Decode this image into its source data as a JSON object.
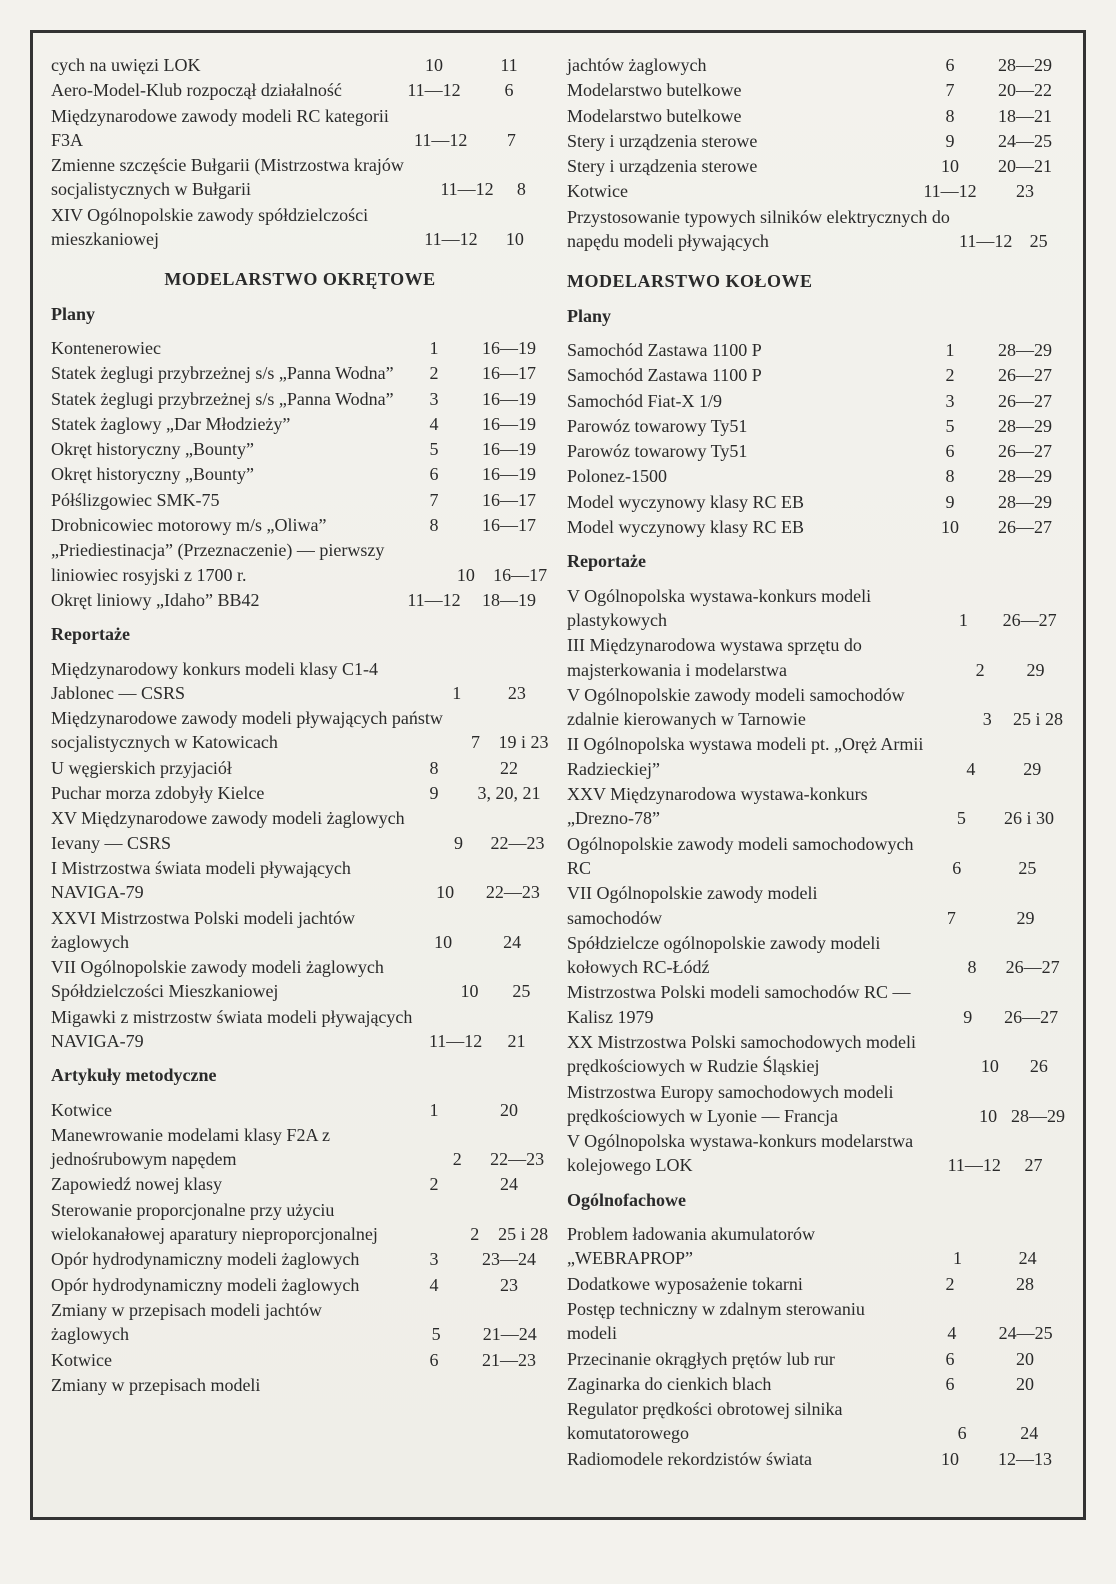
{
  "left": {
    "top_rows": [
      {
        "label": "cych na uwięzi LOK",
        "c1": "10",
        "c2": "11"
      },
      {
        "label": "Aero-Model-Klub rozpoczął działalność",
        "c1": "11—12",
        "c2": "6"
      },
      {
        "label": "Międzynarodowe zawody modeli RC kategorii F3A",
        "c1": "11—12",
        "c2": "7"
      },
      {
        "label": "Zmienne szczęście Bułgarii (Mistrzostwa krajów socjalistycznych w Bułgarii",
        "c1": "11—12",
        "c2": "8"
      },
      {
        "label": "XIV Ogólnopolskie zawody spółdzielczości mieszkaniowej",
        "c1": "11—12",
        "c2": "10"
      }
    ],
    "section1_title": "MODELARSTWO OKRĘTOWE",
    "plany_head": "Plany",
    "plany_rows": [
      {
        "label": "Kontenerowiec",
        "c1": "1",
        "c2": "16—19"
      },
      {
        "label": "Statek żeglugi przybrzeżnej s/s „Panna Wodna”",
        "c1": "2",
        "c2": "16—17"
      },
      {
        "label": "Statek żeglugi przybrzeżnej s/s „Panna Wodna”",
        "c1": "3",
        "c2": "16—19"
      },
      {
        "label": "Statek żaglowy „Dar Młodzieży”",
        "c1": "4",
        "c2": "16—19"
      },
      {
        "label": "Okręt historyczny „Bounty”",
        "c1": "5",
        "c2": "16—19"
      },
      {
        "label": "Okręt historyczny „Bounty”",
        "c1": "6",
        "c2": "16—19"
      },
      {
        "label": "Półślizgowiec SMK-75",
        "c1": "7",
        "c2": "16—17"
      },
      {
        "label": "Drobnicowiec motorowy m/s „Oliwa”",
        "c1": "8",
        "c2": "16—17"
      },
      {
        "label": "„Priediestinacja” (Przeznaczenie) — pierwszy liniowiec rosyjski z 1700 r.",
        "c1": "10",
        "c2": "16—17"
      },
      {
        "label": "Okręt liniowy „Idaho” BB42",
        "c1": "11—12",
        "c2": "18—19"
      }
    ],
    "reportaze_head": "Reportaże",
    "reportaze_rows": [
      {
        "label": "Międzynarodowy konkurs modeli klasy C1-4 Jablonec — CSRS",
        "c1": "1",
        "c2": "23"
      },
      {
        "label": "Międzynarodowe zawody modeli pływających państw socjalistycznych w Katowicach",
        "c1": "7",
        "c2": "19 i 23"
      },
      {
        "label": "U węgierskich przyjaciół",
        "c1": "8",
        "c2": "22"
      },
      {
        "label": "Puchar morza zdobyły Kielce",
        "c1": "9",
        "c2": "3, 20, 21"
      },
      {
        "label": "XV Międzynarodowe zawody modeli żaglowych Ievany — CSRS",
        "c1": "9",
        "c2": "22—23"
      },
      {
        "label": "I Mistrzostwa świata modeli pływających NAVIGA-79",
        "c1": "10",
        "c2": "22—23"
      },
      {
        "label": "XXVI Mistrzostwa Polski modeli jachtów żaglowych",
        "c1": "10",
        "c2": "24"
      },
      {
        "label": "VII Ogólnopolskie zawody modeli żaglowych Spółdzielczości Mieszkaniowej",
        "c1": "10",
        "c2": "25"
      },
      {
        "label": "Migawki z mistrzostw świata modeli pływających NAVIGA-79",
        "c1": "11—12",
        "c2": "21"
      }
    ],
    "artykuly_head": "Artykuły metodyczne",
    "artykuly_rows": [
      {
        "label": "Kotwice",
        "c1": "1",
        "c2": "20"
      },
      {
        "label": "Manewrowanie modelami klasy F2A z jednośrubowym napędem",
        "c1": "2",
        "c2": "22—23"
      },
      {
        "label": "Zapowiedź nowej klasy",
        "c1": "2",
        "c2": "24"
      },
      {
        "label": "Sterowanie proporcjonalne przy użyciu wielokanałowej aparatury nieproporcjonalnej",
        "c1": "2",
        "c2": "25 i 28"
      },
      {
        "label": "Opór hydrodynamiczny modeli żaglowych",
        "c1": "3",
        "c2": "23—24"
      },
      {
        "label": "Opór hydrodynamiczny modeli żaglowych",
        "c1": "4",
        "c2": "23"
      },
      {
        "label": "Zmiany w przepisach modeli jachtów żaglowych",
        "c1": "5",
        "c2": "21—24"
      },
      {
        "label": "Kotwice",
        "c1": "6",
        "c2": "21—23"
      },
      {
        "label": "Zmiany w przepisach modeli",
        "c1": "",
        "c2": ""
      }
    ]
  },
  "right": {
    "top_rows": [
      {
        "label": "jachtów żaglowych",
        "c1": "6",
        "c2": "28—29"
      },
      {
        "label": "Modelarstwo butelkowe",
        "c1": "7",
        "c2": "20—22"
      },
      {
        "label": "Modelarstwo butelkowe",
        "c1": "8",
        "c2": "18—21"
      },
      {
        "label": "Stery i urządzenia sterowe",
        "c1": "9",
        "c2": "24—25"
      },
      {
        "label": "Stery i urządzenia sterowe",
        "c1": "10",
        "c2": "20—21"
      },
      {
        "label": "Kotwice",
        "c1": "11—12",
        "c2": "23"
      },
      {
        "label": "Przystosowanie typowych silników elektrycznych do napędu modeli pływających",
        "c1": "11—12",
        "c2": "25"
      }
    ],
    "section_title": "MODELARSTWO KOŁOWE",
    "plany_head": "Plany",
    "plany_rows": [
      {
        "label": "Samochód Zastawa 1100 P",
        "c1": "1",
        "c2": "28—29"
      },
      {
        "label": "Samochód Zastawa 1100 P",
        "c1": "2",
        "c2": "26—27"
      },
      {
        "label": "Samochód Fiat-X 1/9",
        "c1": "3",
        "c2": "26—27"
      },
      {
        "label": "Parowóz towarowy Ty51",
        "c1": "5",
        "c2": "28—29"
      },
      {
        "label": "Parowóz towarowy Ty51",
        "c1": "6",
        "c2": "26—27"
      },
      {
        "label": "Polonez-1500",
        "c1": "8",
        "c2": "28—29"
      },
      {
        "label": "Model wyczynowy klasy RC EB",
        "c1": "9",
        "c2": "28—29"
      },
      {
        "label": "Model wyczynowy klasy RC EB",
        "c1": "10",
        "c2": "26—27"
      }
    ],
    "reportaze_head": "Reportaże",
    "reportaze_rows": [
      {
        "label": "V Ogólnopolska wystawa-konkurs modeli plastykowych",
        "c1": "1",
        "c2": "26—27"
      },
      {
        "label": "III Międzynarodowa wystawa sprzętu do majsterkowania i modelarstwa",
        "c1": "2",
        "c2": "29"
      },
      {
        "label": "V Ogólnopolskie zawody modeli samochodów zdalnie kierowanych w Tarnowie",
        "c1": "3",
        "c2": "25 i 28"
      },
      {
        "label": "II Ogólnopolska wystawa modeli pt. „Oręż Armii Radzieckiej”",
        "c1": "4",
        "c2": "29"
      },
      {
        "label": "XXV Międzynarodowa wystawa-konkurs „Drezno-78”",
        "c1": "5",
        "c2": "26 i 30"
      },
      {
        "label": "Ogólnopolskie zawody modeli samochodowych RC",
        "c1": "6",
        "c2": "25"
      },
      {
        "label": "VII Ogólnopolskie zawody modeli samochodów",
        "c1": "7",
        "c2": "29"
      },
      {
        "label": "Spółdzielcze ogólnopolskie zawody modeli kołowych RC-Łódź",
        "c1": "8",
        "c2": "26—27"
      },
      {
        "label": "Mistrzostwa Polski modeli samochodów RC — Kalisz 1979",
        "c1": "9",
        "c2": "26—27"
      },
      {
        "label": "XX Mistrzostwa Polski samochodowych modeli prędkościowych w Rudzie Śląskiej",
        "c1": "10",
        "c2": "26"
      },
      {
        "label": "Mistrzostwa Europy samochodowych modeli prędkościowych w Lyonie — Francja",
        "c1": "10",
        "c2": "28—29"
      },
      {
        "label": "V Ogólnopolska wystawa-konkurs modelarstwa kolejowego LOK",
        "c1": "11—12",
        "c2": "27"
      }
    ],
    "ogolno_head": "Ogólnofachowe",
    "ogolno_rows": [
      {
        "label": "Problem ładowania akumulatorów „WEBRAPROP”",
        "c1": "1",
        "c2": "24"
      },
      {
        "label": "Dodatkowe wyposażenie tokarni",
        "c1": "2",
        "c2": "28"
      },
      {
        "label": "Postęp techniczny w zdalnym sterowaniu modeli",
        "c1": "4",
        "c2": "24—25"
      },
      {
        "label": "Przecinanie okrągłych prętów lub rur",
        "c1": "6",
        "c2": "20"
      },
      {
        "label": "Zaginarka do cienkich blach",
        "c1": "6",
        "c2": "20"
      },
      {
        "label": "Regulator prędkości obrotowej silnika komutatorowego",
        "c1": "6",
        "c2": "24"
      },
      {
        "label": "Radiomodele rekordzistów świata",
        "c1": "10",
        "c2": "12—13"
      }
    ]
  }
}
